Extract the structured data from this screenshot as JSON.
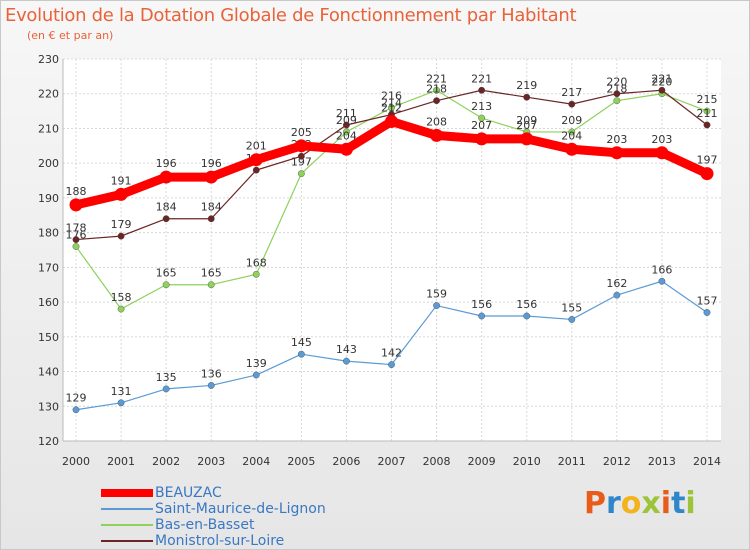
{
  "header": {
    "title": "Evolution de la Dotation Globale de Fonctionnement par Habitant",
    "subtitle": "(en € et par an)"
  },
  "logo": {
    "text": "Proxiti"
  },
  "chart_data": {
    "type": "line",
    "x": [
      2000,
      2001,
      2002,
      2003,
      2004,
      2005,
      2006,
      2007,
      2008,
      2009,
      2010,
      2011,
      2012,
      2013,
      2014
    ],
    "ylim": [
      120,
      230
    ],
    "yticks": [
      120,
      130,
      140,
      150,
      160,
      170,
      180,
      190,
      200,
      210,
      220,
      230
    ],
    "grid": true,
    "legend_position": "bottom-left",
    "series": [
      {
        "name": "BEAUZAC",
        "color": "#ff0000",
        "emphasis": true,
        "values": [
          188,
          191,
          196,
          196,
          201,
          205,
          204,
          212,
          208,
          207,
          207,
          204,
          203,
          203,
          197
        ]
      },
      {
        "name": "Saint-Maurice-de-Lignon",
        "color": "#5b9bd5",
        "values": [
          129,
          131,
          135,
          136,
          139,
          145,
          143,
          142,
          159,
          156,
          156,
          155,
          162,
          166,
          157
        ]
      },
      {
        "name": "Bas-en-Basset",
        "color": "#8fd15c",
        "values": [
          176,
          158,
          165,
          165,
          168,
          197,
          209,
          216,
          221,
          213,
          209,
          209,
          218,
          220,
          215
        ]
      },
      {
        "name": "Monistrol-sur-Loire",
        "color": "#6b2525",
        "values": [
          178,
          179,
          184,
          184,
          198,
          202,
          211,
          214,
          218,
          221,
          219,
          217,
          220,
          221,
          211
        ]
      }
    ]
  }
}
